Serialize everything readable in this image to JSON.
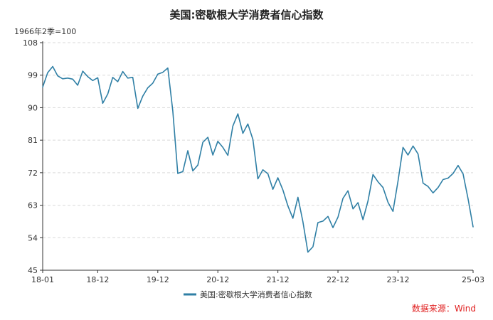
{
  "chart_data": {
    "type": "line",
    "title": "美国:密歇根大学消费者信心指数",
    "ylabel": "1966年2季=100",
    "xlabel": "",
    "ylim": [
      45,
      108
    ],
    "yticks": [
      45,
      54,
      63,
      72,
      81,
      90,
      99,
      108
    ],
    "xticks": [
      {
        "label": "18-01",
        "x": 0
      },
      {
        "label": "18-12",
        "x": 11
      },
      {
        "label": "19-12",
        "x": 23
      },
      {
        "label": "20-12",
        "x": 35
      },
      {
        "label": "21-12",
        "x": 47
      },
      {
        "label": "22-12",
        "x": 59
      },
      {
        "label": "23-12",
        "x": 71
      },
      {
        "label": "25-03",
        "x": 86
      }
    ],
    "grid": "horizontal-dashed",
    "legend_position": "bottom-center",
    "series": [
      {
        "name": "美国:密歇根大学消费者信心指数",
        "color": "#2f7fa5",
        "start": "2018-01",
        "values": [
          95.7,
          99.7,
          101.4,
          98.8,
          98.0,
          98.2,
          97.9,
          96.2,
          100.1,
          98.6,
          97.5,
          98.3,
          91.2,
          93.8,
          98.4,
          97.2,
          100.0,
          98.2,
          98.4,
          89.8,
          93.2,
          95.5,
          96.8,
          99.3,
          99.8,
          101.0,
          89.1,
          71.8,
          72.3,
          78.1,
          72.5,
          74.1,
          80.4,
          81.8,
          76.9,
          80.7,
          79.0,
          76.8,
          84.9,
          88.3,
          82.9,
          85.5,
          81.2,
          70.3,
          72.8,
          71.7,
          67.4,
          70.6,
          67.2,
          62.8,
          59.4,
          65.2,
          58.4,
          50.0,
          51.5,
          58.2,
          58.6,
          59.9,
          56.8,
          59.7,
          64.9,
          67.0,
          62.0,
          63.7,
          59.0,
          64.2,
          71.5,
          69.5,
          67.9,
          63.8,
          61.3,
          69.7,
          79.0,
          76.9,
          79.4,
          77.2,
          69.1,
          68.2,
          66.4,
          67.9,
          70.1,
          70.5,
          71.8,
          74.0,
          71.7,
          64.7,
          57.0
        ]
      }
    ]
  },
  "source": {
    "label": "数据来源：Wind"
  }
}
